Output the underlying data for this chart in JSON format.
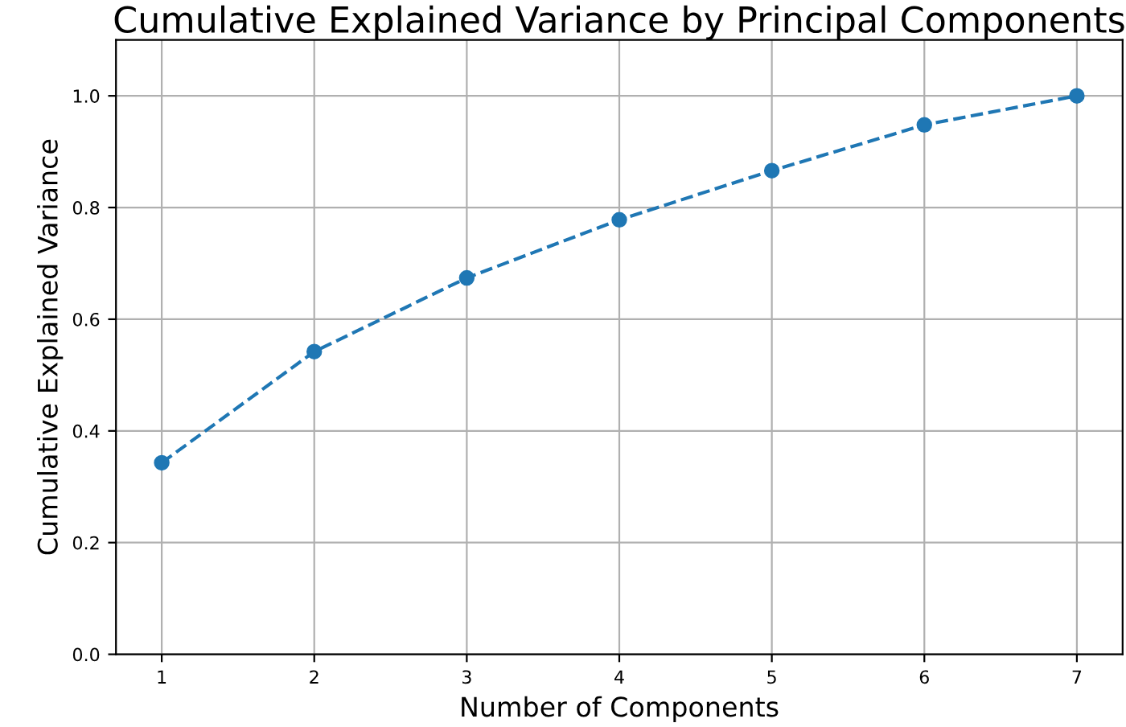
{
  "chart_data": {
    "type": "line",
    "title": "Cumulative Explained Variance by Principal Components",
    "xlabel": "Number of Components",
    "ylabel": "Cumulative Explained Variance",
    "x": [
      1,
      2,
      3,
      4,
      5,
      6,
      7
    ],
    "series": [
      {
        "color": "#1f77b4",
        "values": [
          0.343,
          0.542,
          0.674,
          0.778,
          0.866,
          0.948,
          1.0
        ]
      }
    ],
    "xlim": [
      0.7,
      7.3
    ],
    "xticks": [
      1,
      2,
      3,
      4,
      5,
      6,
      7
    ],
    "ylim": [
      0,
      1.1
    ],
    "yticks": [
      {
        "value": 0,
        "label": "0.0"
      },
      0.2,
      0.4,
      0.6,
      0.8,
      {
        "value": 1,
        "label": "1.0"
      }
    ],
    "grid": true,
    "marker": "circle",
    "line_style": "dashed"
  }
}
